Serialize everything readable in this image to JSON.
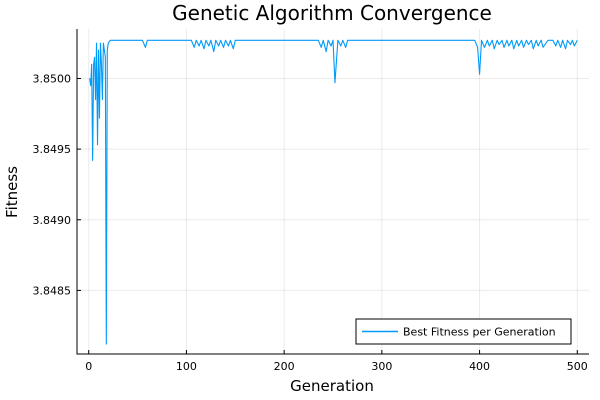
{
  "chart_data": {
    "type": "line",
    "title": "Genetic Algorithm Convergence",
    "xlabel": "Generation",
    "ylabel": "Fitness",
    "xlim": [
      -12,
      512
    ],
    "ylim": [
      3.84805,
      3.85035
    ],
    "xticks": [
      0,
      100,
      200,
      300,
      400,
      500
    ],
    "xtick_labels": [
      "0",
      "100",
      "200",
      "300",
      "400",
      "500"
    ],
    "yticks": [
      3.8485,
      3.849,
      3.8495,
      3.85
    ],
    "ytick_labels": [
      "3.8485",
      "3.8490",
      "3.8495",
      "3.8500"
    ],
    "grid": true,
    "legend_position": "bottom-right",
    "series": [
      {
        "name": "Best Fitness per Generation",
        "color": "#009af9",
        "x": [
          1,
          2,
          3,
          4,
          5,
          6,
          7,
          8,
          9,
          10,
          11,
          12,
          13,
          14,
          15,
          16,
          17,
          18,
          19,
          20,
          22,
          25,
          28,
          30,
          35,
          40,
          45,
          50,
          55,
          58,
          60,
          62,
          65,
          70,
          75,
          80,
          85,
          90,
          95,
          100,
          105,
          108,
          110,
          113,
          115,
          118,
          120,
          123,
          125,
          128,
          130,
          133,
          135,
          138,
          140,
          143,
          145,
          148,
          150,
          152,
          155,
          160,
          170,
          180,
          190,
          200,
          210,
          220,
          230,
          235,
          238,
          240,
          243,
          245,
          248,
          250,
          252,
          255,
          258,
          260,
          263,
          265,
          270,
          280,
          290,
          300,
          310,
          320,
          330,
          340,
          350,
          360,
          370,
          380,
          390,
          395,
          398,
          400,
          402,
          405,
          408,
          410,
          413,
          415,
          418,
          420,
          423,
          425,
          428,
          430,
          433,
          435,
          438,
          440,
          443,
          445,
          448,
          450,
          453,
          455,
          458,
          460,
          463,
          465,
          470,
          475,
          478,
          480,
          483,
          485,
          488,
          490,
          493,
          495,
          497,
          500
        ],
        "y": [
          3.85,
          3.84995,
          3.8501,
          3.84942,
          3.8501,
          3.85015,
          3.84985,
          3.85025,
          3.84953,
          3.8502,
          3.84972,
          3.85025,
          3.8501,
          3.84985,
          3.85025,
          3.8502,
          3.85015,
          3.84812,
          3.8502,
          3.85025,
          3.85027,
          3.85027,
          3.85027,
          3.85027,
          3.85027,
          3.85027,
          3.85027,
          3.85027,
          3.85027,
          3.85022,
          3.85027,
          3.85027,
          3.85027,
          3.85027,
          3.85027,
          3.85027,
          3.85027,
          3.85027,
          3.85027,
          3.85027,
          3.85027,
          3.85022,
          3.85027,
          3.85023,
          3.85027,
          3.85021,
          3.85027,
          3.85023,
          3.85027,
          3.85019,
          3.85027,
          3.85023,
          3.85027,
          3.85022,
          3.85027,
          3.85023,
          3.85027,
          3.85021,
          3.85027,
          3.85027,
          3.85027,
          3.85027,
          3.85027,
          3.85027,
          3.85027,
          3.85027,
          3.85027,
          3.85027,
          3.85027,
          3.85027,
          3.85022,
          3.85027,
          3.85019,
          3.85027,
          3.85023,
          3.85027,
          3.84997,
          3.85027,
          3.85023,
          3.85027,
          3.85022,
          3.85027,
          3.85027,
          3.85027,
          3.85027,
          3.85027,
          3.85027,
          3.85027,
          3.85027,
          3.85027,
          3.85027,
          3.85027,
          3.85027,
          3.85027,
          3.85027,
          3.85027,
          3.85022,
          3.85003,
          3.85027,
          3.85022,
          3.85027,
          3.85023,
          3.85027,
          3.85021,
          3.85027,
          3.85024,
          3.85027,
          3.85022,
          3.85027,
          3.85023,
          3.85027,
          3.85021,
          3.85027,
          3.85023,
          3.85027,
          3.85022,
          3.85027,
          3.85024,
          3.85027,
          3.85021,
          3.85027,
          3.85023,
          3.85027,
          3.85022,
          3.85027,
          3.85027,
          3.85023,
          3.85027,
          3.85022,
          3.85027,
          3.85021,
          3.85027,
          3.85024,
          3.85027,
          3.85023,
          3.85027
        ]
      }
    ]
  }
}
